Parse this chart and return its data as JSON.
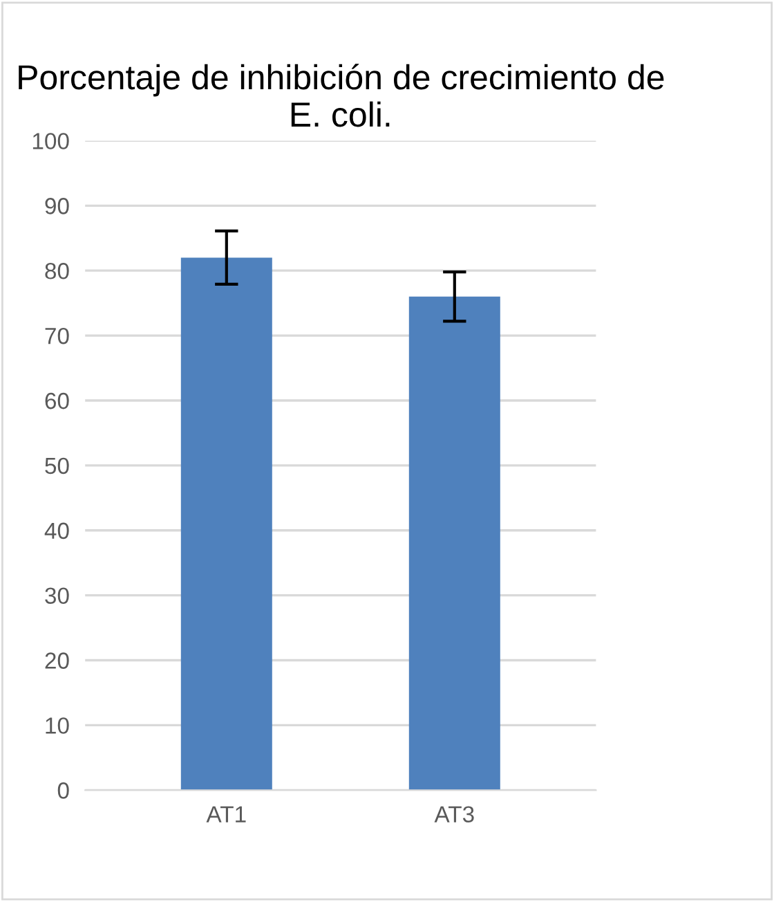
{
  "chart_data": {
    "type": "bar",
    "title": "Porcentaje de inhibición de crecimiento de E. coli.",
    "categories": [
      "AT1",
      "AT3"
    ],
    "values": [
      82,
      76
    ],
    "errors": [
      4.1,
      3.8
    ],
    "color": "#4f81bd",
    "ylim": [
      0,
      100
    ],
    "yticks": [
      0,
      10,
      20,
      30,
      40,
      50,
      60,
      70,
      80,
      90,
      100
    ],
    "grid": "y"
  }
}
